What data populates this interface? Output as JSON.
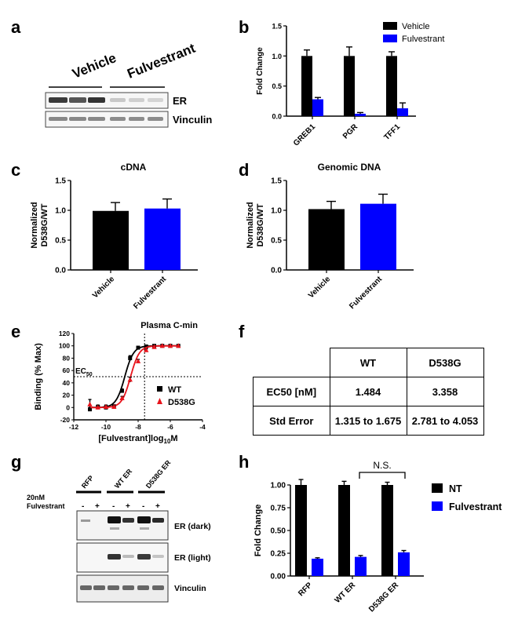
{
  "panel_letters": [
    "a",
    "b",
    "c",
    "d",
    "e",
    "f",
    "g",
    "h"
  ],
  "colors": {
    "black": "#000000",
    "blue": "#0000ff",
    "red": "#e8141c"
  },
  "panel_a": {
    "groups": [
      "Vehicle",
      "Fulvestrant"
    ],
    "bands": [
      "ER",
      "Vinculin"
    ]
  },
  "panel_g": {
    "conc": "20nM",
    "drug": "Fulvestrant",
    "groups": [
      "RFP",
      "WT ER",
      "D538G ER"
    ],
    "signs": [
      "-",
      "+",
      "-",
      "+",
      "-",
      "+"
    ],
    "bands": [
      "ER (dark)",
      "ER (light)",
      "Vinculin"
    ]
  },
  "panel_f": {
    "headers": [
      "WT",
      "D538G"
    ],
    "rows": [
      {
        "label": "EC50 [nM]",
        "wt": "1.484",
        "d538g": "3.358"
      },
      {
        "label": "Std Error",
        "wt": "1.315 to 1.675",
        "d538g": "2.781 to 4.053"
      }
    ]
  },
  "chart_data": [
    {
      "panel": "b",
      "type": "bar",
      "title": "",
      "ylabel": "Fold Change",
      "xlabel": "",
      "ylim": [
        0,
        1.5
      ],
      "yticks": [
        "0.0",
        "0.5",
        "1.0",
        "1.5"
      ],
      "categories": [
        "GREB1",
        "PGR",
        "TFF1"
      ],
      "series": [
        {
          "name": "Vehicle",
          "color": "#000000",
          "values": [
            1.0,
            1.0,
            1.0
          ],
          "errors": [
            0.1,
            0.15,
            0.07
          ]
        },
        {
          "name": "Fulvestrant",
          "color": "#0000ff",
          "values": [
            0.28,
            0.04,
            0.13
          ],
          "errors": [
            0.03,
            0.02,
            0.09
          ]
        }
      ],
      "legend": "top-right"
    },
    {
      "panel": "c",
      "type": "bar",
      "title": "cDNA",
      "ylabel": "Normalized D538G/WT",
      "ylim": [
        0,
        1.5
      ],
      "yticks": [
        "0.0",
        "0.5",
        "1.0",
        "1.5"
      ],
      "categories": [
        "Vehicle",
        "Fulvestrant"
      ],
      "values": [
        0.99,
        1.03
      ],
      "errors": [
        0.14,
        0.16
      ],
      "colors": [
        "#000000",
        "#0000ff"
      ]
    },
    {
      "panel": "d",
      "type": "bar",
      "title": "Genomic DNA",
      "ylabel": "Normalized D538G/WT",
      "ylim": [
        0,
        1.5
      ],
      "yticks": [
        "0.0",
        "0.5",
        "1.0",
        "1.5"
      ],
      "categories": [
        "Vehicle",
        "Fulvestrant"
      ],
      "values": [
        1.02,
        1.11
      ],
      "errors": [
        0.13,
        0.16
      ],
      "colors": [
        "#000000",
        "#0000ff"
      ]
    },
    {
      "panel": "e",
      "type": "scatter",
      "title": "",
      "ylabel": "Binding (% Max)",
      "xlabel_main": "[Fulvestrant]log",
      "xlabel_sub": "10",
      "xlabel_tail": "M",
      "xlim": [
        -12,
        -4
      ],
      "ylim": [
        -20,
        120
      ],
      "xticks": [
        -12,
        -10,
        -8,
        -6,
        -4
      ],
      "yticks": [
        -20,
        0,
        20,
        40,
        60,
        80,
        100,
        120
      ],
      "ec50_label": "EC",
      "ec50_sub": "50",
      "ec50_y": 50,
      "cmin_label": "Plasma C-min",
      "cmin_x": -7.6,
      "series": [
        {
          "name": "WT",
          "color": "#000000",
          "marker": "square",
          "log_ec50": -8.83,
          "x": [
            -11,
            -10.5,
            -10,
            -9.5,
            -9,
            -8.5,
            -8,
            -7.5,
            -7,
            -6.5,
            -6,
            -5.5
          ],
          "y": [
            -3,
            1,
            0,
            2,
            27,
            80,
            97,
            99,
            100,
            100,
            100,
            100
          ],
          "err": [
            3,
            3,
            3,
            2,
            3,
            4,
            2,
            1,
            1,
            1,
            1,
            1
          ]
        },
        {
          "name": "D538G",
          "color": "#e8141c",
          "marker": "triangle",
          "log_ec50": -8.47,
          "x": [
            -11,
            -10.5,
            -10,
            -9.5,
            -9,
            -8.5,
            -8,
            -7.5,
            -7,
            -6.5,
            -6,
            -5.5
          ],
          "y": [
            5,
            0,
            1,
            1,
            15,
            45,
            75,
            93,
            98,
            100,
            100,
            100
          ],
          "err": [
            8,
            3,
            3,
            2,
            3,
            4,
            3,
            2,
            1,
            1,
            1,
            1
          ]
        }
      ],
      "legend": "right"
    },
    {
      "panel": "h",
      "type": "bar",
      "title": "",
      "ylabel": "Fold Change",
      "ylim": [
        0,
        1.0
      ],
      "yticks": [
        "0.00",
        "0.25",
        "0.50",
        "0.75",
        "1.00"
      ],
      "categories": [
        "RFP",
        "WT ER",
        "D538G ER"
      ],
      "series": [
        {
          "name": "NT",
          "color": "#000000",
          "values": [
            1.0,
            1.0,
            1.0
          ],
          "errors": [
            0.06,
            0.04,
            0.03
          ]
        },
        {
          "name": "Fulvestrant",
          "color": "#0000ff",
          "values": [
            0.19,
            0.21,
            0.26
          ],
          "errors": [
            0.01,
            0.015,
            0.02
          ]
        }
      ],
      "annotation": "N.S.",
      "legend": "right"
    }
  ]
}
